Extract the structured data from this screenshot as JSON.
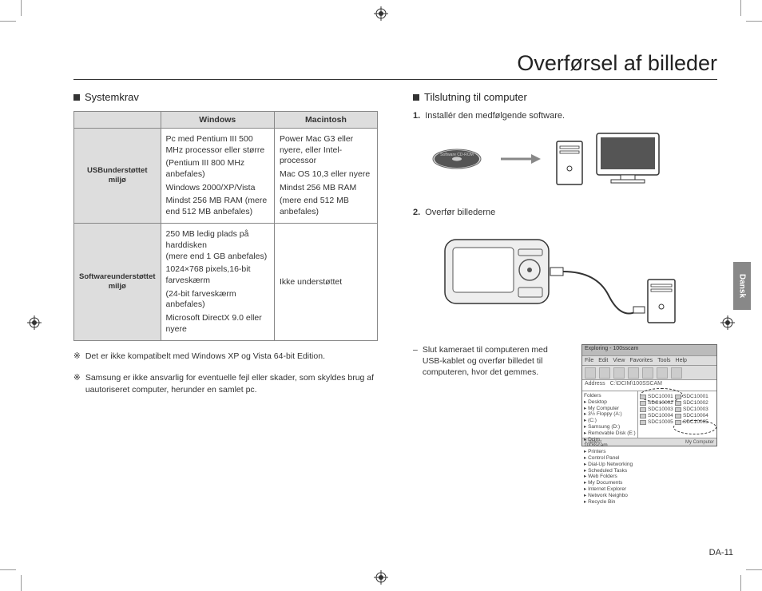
{
  "page_title": "Overførsel af billeder",
  "left": {
    "heading": "Systemkrav",
    "table": {
      "headers": [
        "",
        "Windows",
        "Macintosh"
      ],
      "row1_head": "USBunderstøttet miljø",
      "row1_win": [
        "Pc med Pentium III 500 MHz processor eller større",
        "(Pentium III 800 MHz anbefales)",
        "Windows 2000/XP/Vista",
        "Mindst 256 MB RAM (mere end 512 MB anbefales)"
      ],
      "row1_mac": [
        "Power Mac G3 eller nyere, eller Intel-processor",
        "Mac OS 10,3 eller nyere",
        "Mindst 256 MB RAM",
        "(mere end 512 MB anbefales)"
      ],
      "row2_head": "Softwareunderstøttet miljø",
      "row2_win": [
        "250 MB ledig plads på harddisken\n(mere end 1 GB anbefales)",
        "1024×768 pixels,16-bit farveskærm",
        "(24-bit farveskærm anbefales)",
        "Microsoft DirectX 9.0 eller nyere"
      ],
      "row2_mac": "Ikke understøttet"
    },
    "notes": [
      "Det er ikke kompatibelt med Windows XP og Vista 64-bit Edition.",
      "Samsung er ikke ansvarlig for eventuelle fejl eller skader, som skyldes brug af uautoriseret computer, herunder en samlet pc."
    ]
  },
  "right": {
    "heading": "Tilslutning til computer",
    "step1_num": "1.",
    "step1_text": "Installér den medfølgende software.",
    "step2_num": "2.",
    "step2_text": "Overfør billederne",
    "sub_text": "Slut kameraet til computeren med USB-kablet og overfør billedet til computeren, hvor det gemmes.",
    "explorer": {
      "title_bar": "Exploring - 100sscam",
      "menu": [
        "File",
        "Edit",
        "View",
        "Favorites",
        "Tools",
        "Help"
      ],
      "toolbar_labels": [
        "Back",
        "",
        "Up",
        "Search",
        "Folders",
        "History",
        "",
        "",
        "",
        ""
      ],
      "address_label": "Address",
      "address_value": "C:\\DCIM\\100SSCAM",
      "tree": [
        "Folders",
        "▸ Desktop",
        "  ▸ My Computer",
        "    ▸ 3½ Floppy (A:)",
        "    ▸ (C:)",
        "    ▸ Samsung (D:)",
        "    ▸ Removable Disk (E:)",
        "      ▸ Dcim",
        "        100sscam",
        "    ▸ Printers",
        "    ▸ Control Panel",
        "    ▸ Dial-Up Networking",
        "    ▸ Scheduled Tasks",
        "    ▸ Web Folders",
        "  ▸ My Documents",
        "  ▸ Internet Explorer",
        "  ▸ Network Neighbo",
        "  ▸ Recycle Bin"
      ],
      "files": [
        "SDC10001",
        "SDC10002",
        "SDC10003",
        "SDC10004",
        "SDC10005"
      ],
      "status_left": "1 object",
      "status_right": "My Computer"
    }
  },
  "side_tab": "Dansk",
  "page_number": "DA-11",
  "note_marker": "※",
  "cd_label": "Software CD-ROM",
  "colors": {
    "text": "#333333",
    "rule": "#333333",
    "table_header_bg": "#dddddd",
    "table_border": "#888888",
    "sidetab_bg": "#888888"
  }
}
